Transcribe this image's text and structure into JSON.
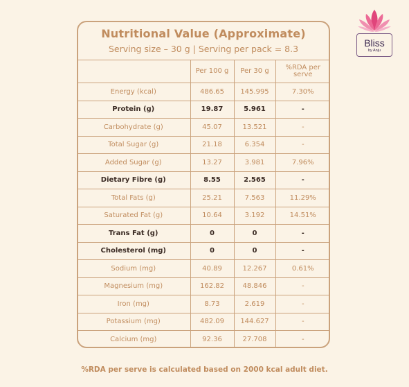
{
  "title": "Nutritional Value (Approximate)",
  "subtitle": "Serving size – 30 g | Serving per pack = 8.3",
  "columns": [
    "",
    "Per 100 g",
    "Per 30 g",
    "%RDA per serve"
  ],
  "rows": [
    {
      "name": "Energy (kcal)",
      "per100": "486.65",
      "per30": "145.995",
      "rda": "7.30%",
      "bold": false
    },
    {
      "name": "Protein (g)",
      "per100": "19.87",
      "per30": "5.961",
      "rda": "-",
      "bold": true
    },
    {
      "name": "Carbohydrate (g)",
      "per100": "45.07",
      "per30": "13.521",
      "rda": "-",
      "bold": false
    },
    {
      "name": "Total Sugar (g)",
      "per100": "21.18",
      "per30": "6.354",
      "rda": "-",
      "bold": false
    },
    {
      "name": "Added Sugar (g)",
      "per100": "13.27",
      "per30": "3.981",
      "rda": "7.96%",
      "bold": false
    },
    {
      "name": "Dietary Fibre (g)",
      "per100": "8.55",
      "per30": "2.565",
      "rda": "-",
      "bold": true
    },
    {
      "name": "Total Fats (g)",
      "per100": "25.21",
      "per30": "7.563",
      "rda": "11.29%",
      "bold": false
    },
    {
      "name": "Saturated Fat (g)",
      "per100": "10.64",
      "per30": "3.192",
      "rda": "14.51%",
      "bold": false
    },
    {
      "name": "Trans Fat (g)",
      "per100": "0",
      "per30": "0",
      "rda": "-",
      "bold": true
    },
    {
      "name": "Cholesterol (mg)",
      "per100": "0",
      "per30": "0",
      "rda": "-",
      "bold": true
    },
    {
      "name": "Sodium (mg)",
      "per100": "40.89",
      "per30": "12.267",
      "rda": "0.61%",
      "bold": false
    },
    {
      "name": "Magnesium (mg)",
      "per100": "162.82",
      "per30": "48.846",
      "rda": "-",
      "bold": false
    },
    {
      "name": "Iron (mg)",
      "per100": "8.73",
      "per30": "2.619",
      "rda": "-",
      "bold": false
    },
    {
      "name": "Potassium (mg)",
      "per100": "482.09",
      "per30": "144.627",
      "rda": "-",
      "bold": false
    },
    {
      "name": "Calcium (mg)",
      "per100": "92.36",
      "per30": "27.708",
      "rda": "-",
      "bold": false
    }
  ],
  "footnote": "%RDA per serve is calculated based on 2000 kcal adult diet.",
  "logo": {
    "brand": "Bliss",
    "tagline": "by Anju",
    "icon": "lotus-icon"
  },
  "colors": {
    "background": "#fbf3e6",
    "accent": "#c08c5e",
    "border": "#caa27c",
    "bold_text": "#3b2b24",
    "logo_pink": "#e0457b",
    "logo_text": "#3b2750"
  }
}
